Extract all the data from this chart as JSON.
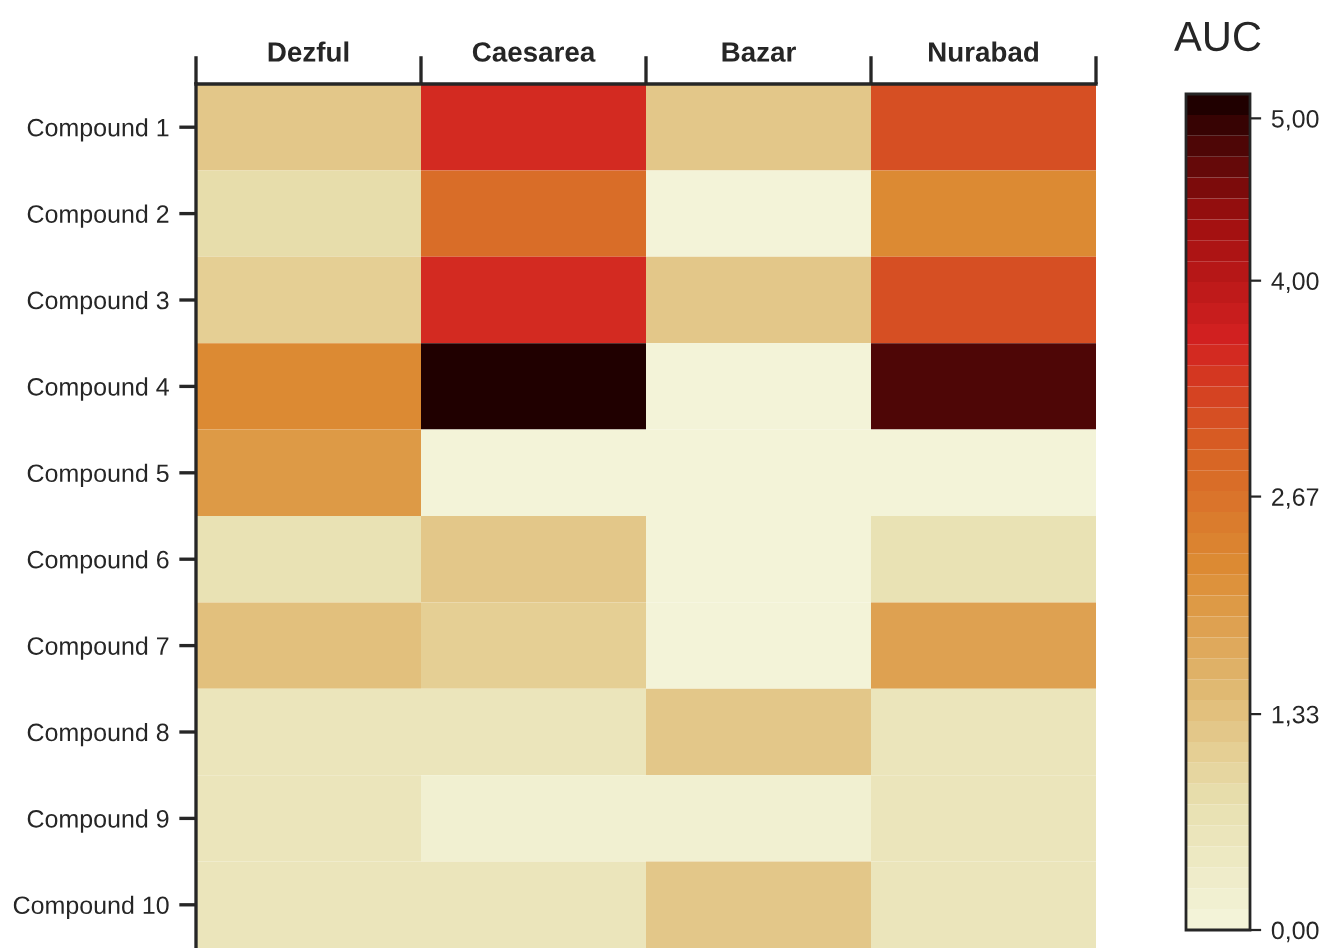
{
  "chart_data": {
    "type": "heatmap",
    "clabel": "AUC",
    "categories": [
      "Dezful",
      "Caesarea",
      "Bazar",
      "Nurabad"
    ],
    "y_categories": [
      "Compound 1",
      "Compound 2",
      "Compound 3",
      "Compound 4",
      "Compound 5",
      "Compound 6",
      "Compound 7",
      "Compound 8",
      "Compound 9",
      "Compound 10"
    ],
    "cells": [
      [
        1.2,
        3.6,
        1.2,
        3.2
      ],
      [
        0.9,
        2.8,
        0.1,
        2.2
      ],
      [
        1.1,
        3.6,
        1.2,
        3.2
      ],
      [
        2.3,
        5.1,
        0.1,
        4.8
      ],
      [
        2.0,
        0.1,
        0.1,
        0.1
      ],
      [
        0.7,
        1.2,
        0.1,
        0.7
      ],
      [
        1.3,
        1.1,
        0.1,
        1.9
      ],
      [
        0.6,
        0.6,
        1.2,
        0.6
      ],
      [
        0.6,
        0.2,
        0.2,
        0.6
      ],
      [
        0.6,
        0.6,
        1.2,
        0.6
      ]
    ],
    "clim": [
      0,
      5.15
    ],
    "cticks": [
      {
        "value": 0,
        "label": "0,00"
      },
      {
        "value": 1.33,
        "label": "1,33"
      },
      {
        "value": 2.67,
        "label": "2,67"
      },
      {
        "value": 4,
        "label": "4,00"
      },
      {
        "value": 5,
        "label": "5,00"
      }
    ]
  }
}
